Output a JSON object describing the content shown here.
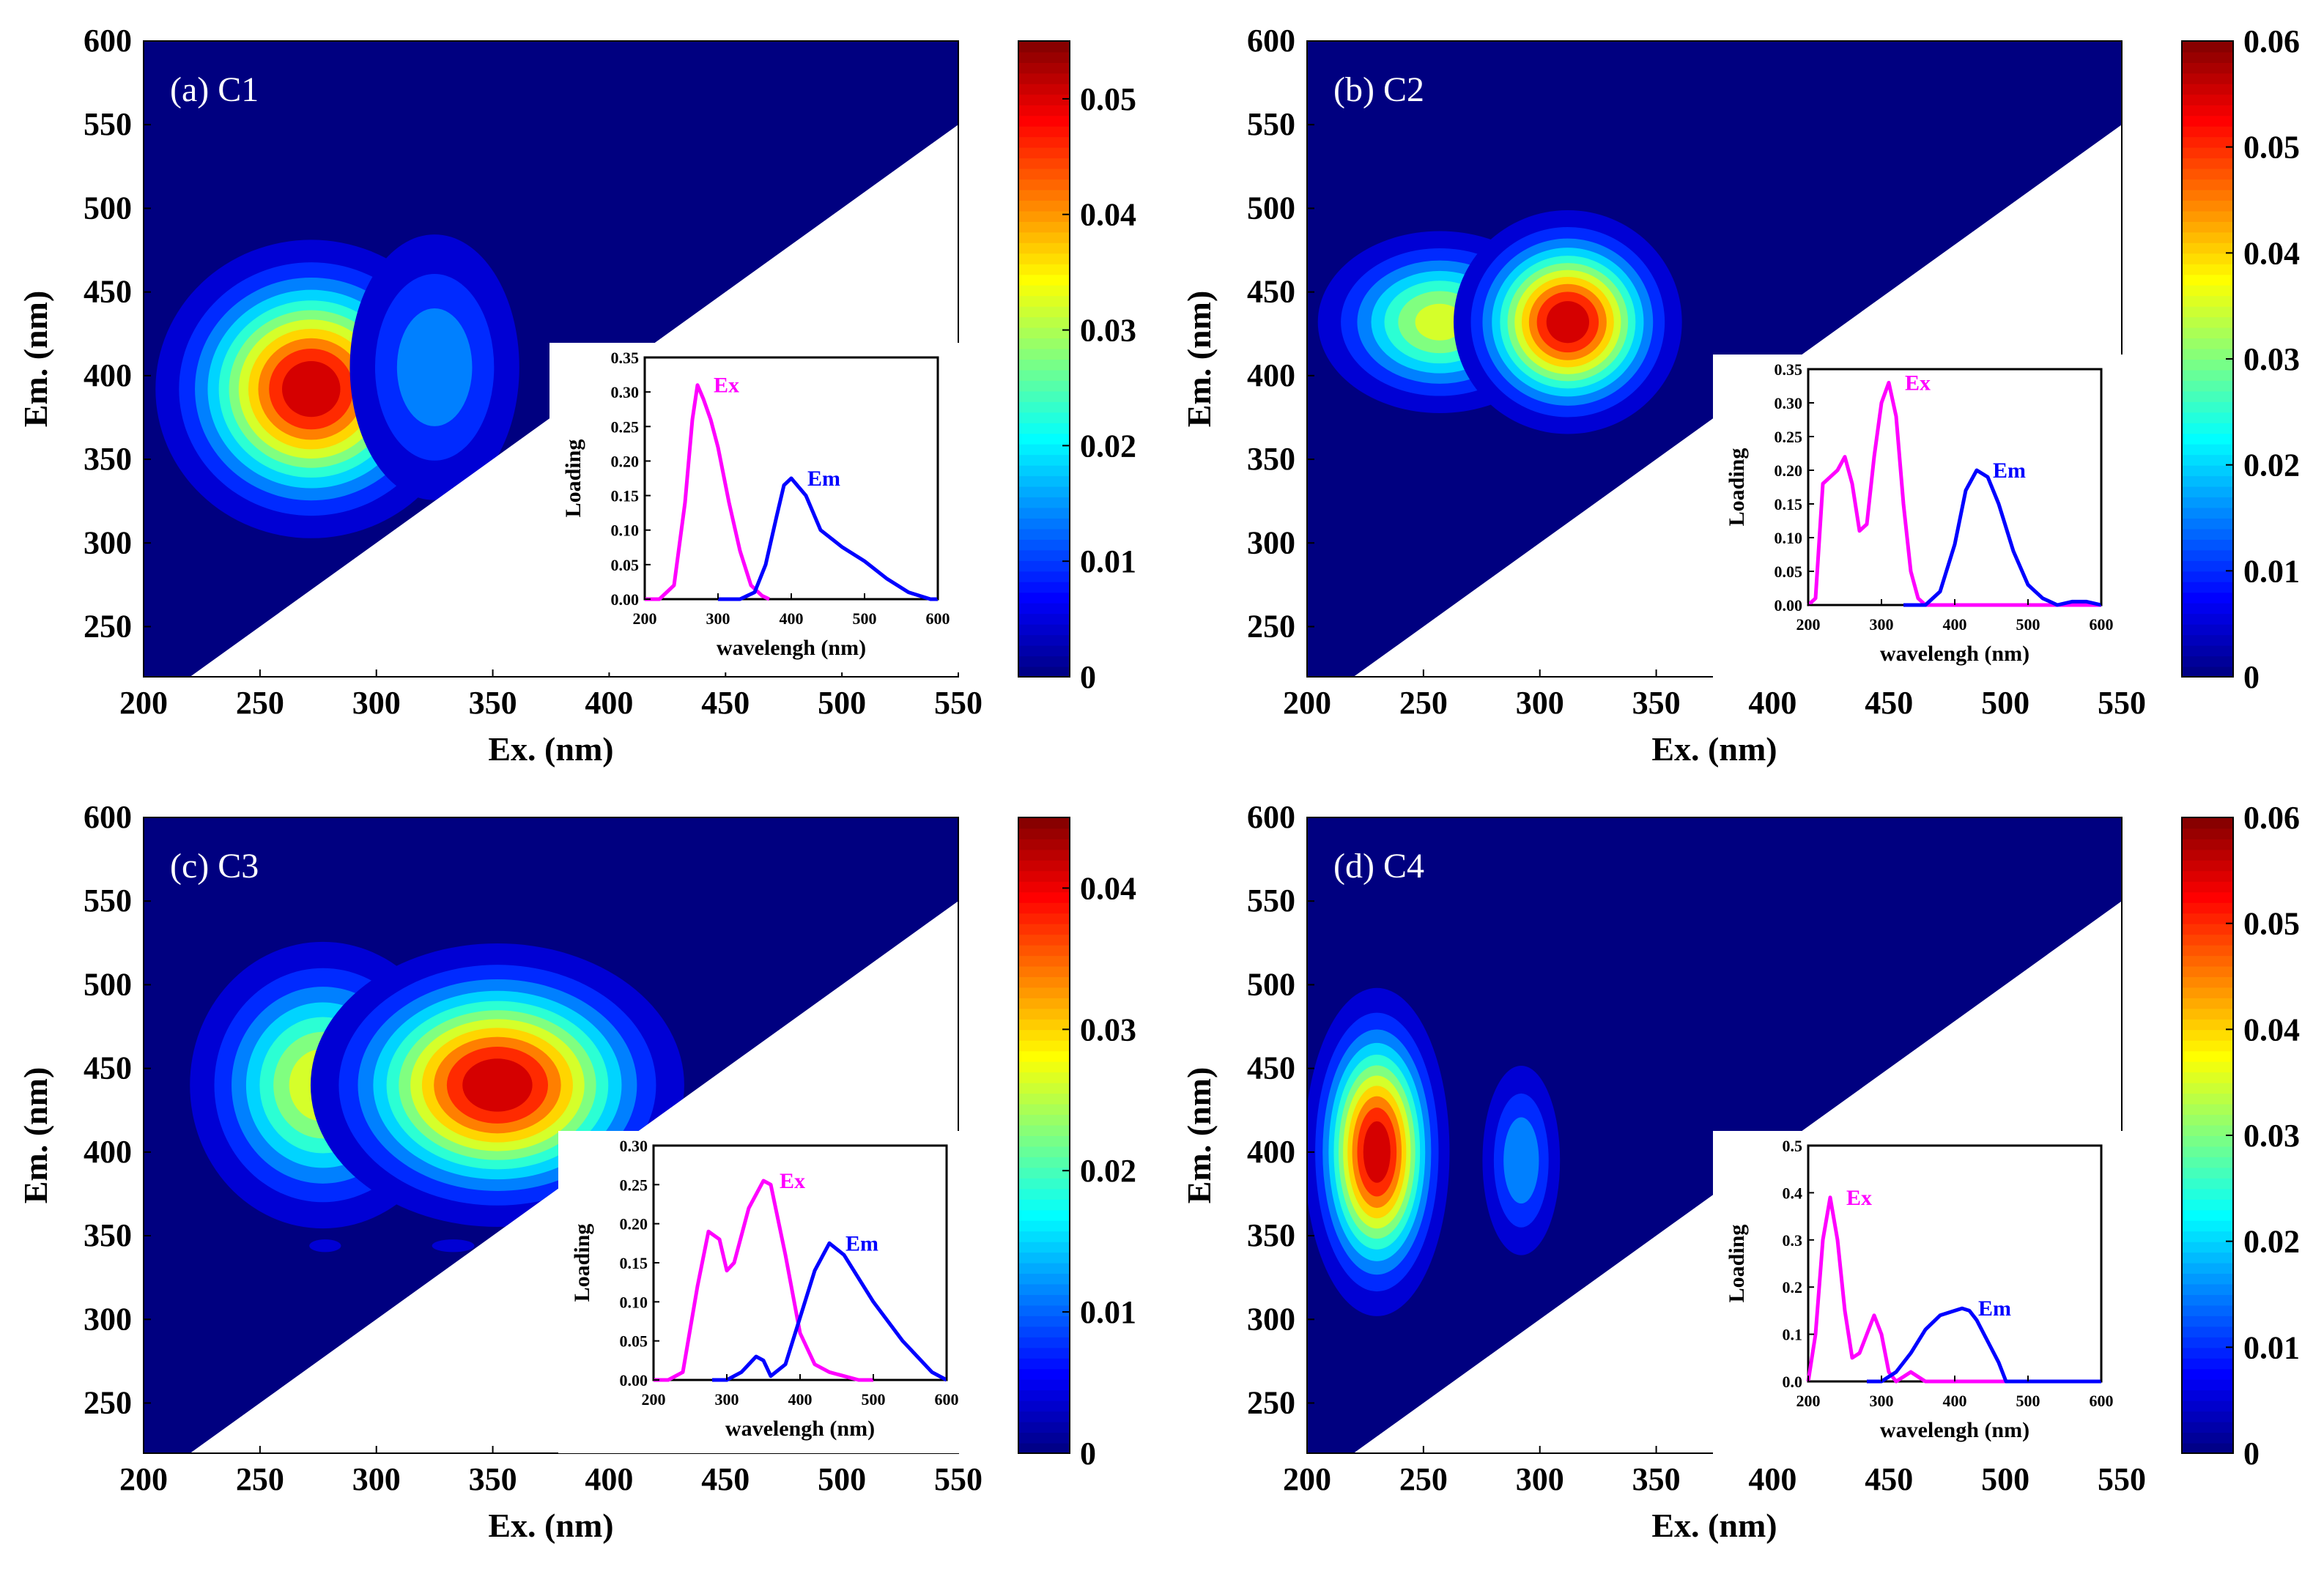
{
  "figure": {
    "axis": {
      "xlabel": "Ex. (nm)",
      "ylabel": "Em. (nm)",
      "xlim": [
        200,
        550
      ],
      "ylim": [
        220,
        600
      ],
      "xticks": [
        "200",
        "250",
        "300",
        "350",
        "400",
        "450",
        "500",
        "550"
      ],
      "yticks": [
        "250",
        "300",
        "350",
        "400",
        "450",
        "500",
        "550",
        "600"
      ]
    },
    "inset_axis": {
      "xlabel": "wavelengh (nm)",
      "ylabel": "Loading",
      "xticks": [
        "200",
        "300",
        "400",
        "500",
        "600"
      ],
      "xlim": [
        200,
        600
      ]
    }
  },
  "chart_data": [
    {
      "type": "heatmap",
      "title": "(a) C1",
      "colorbar": {
        "max": 0.055,
        "ticks": [
          "0",
          "0.01",
          "0.02",
          "0.03",
          "0.04",
          "0.05"
        ]
      },
      "peaks": [
        {
          "ex": 272,
          "em": 392,
          "sx": 30,
          "sy": 40,
          "amp": 0.055
        },
        {
          "ex": 325,
          "em": 405,
          "sx": 22,
          "sy": 48,
          "amp": 0.018
        }
      ],
      "inset": {
        "ylim": [
          0,
          0.35
        ],
        "yticks": [
          "0.00",
          "0.05",
          "0.10",
          "0.15",
          "0.20",
          "0.25",
          "0.30",
          "0.35"
        ],
        "series": [
          {
            "name": "Ex",
            "color": "#ff00ff",
            "x": [
              200,
              220,
              240,
              255,
              265,
              272,
              280,
              290,
              300,
              315,
              330,
              345,
              360,
              370
            ],
            "y": [
              0,
              0,
              0.02,
              0.14,
              0.26,
              0.31,
              0.29,
              0.26,
              0.22,
              0.14,
              0.07,
              0.02,
              0.005,
              0
            ]
          },
          {
            "name": "Em",
            "color": "#0000ff",
            "x": [
              300,
              330,
              350,
              365,
              380,
              390,
              400,
              420,
              440,
              470,
              500,
              530,
              560,
              590,
              600
            ],
            "y": [
              0,
              0,
              0.01,
              0.05,
              0.12,
              0.165,
              0.175,
              0.15,
              0.1,
              0.075,
              0.055,
              0.03,
              0.01,
              0,
              0
            ]
          }
        ]
      }
    },
    {
      "type": "heatmap",
      "title": "(b) C2",
      "colorbar": {
        "max": 0.06,
        "ticks": [
          "0",
          "0.01",
          "0.02",
          "0.03",
          "0.04",
          "0.05",
          "0.06"
        ]
      },
      "peaks": [
        {
          "ex": 257,
          "em": 432,
          "sx": 26,
          "sy": 27,
          "amp": 0.038
        },
        {
          "ex": 312,
          "em": 432,
          "sx": 22,
          "sy": 30,
          "amp": 0.06
        }
      ],
      "inset": {
        "ylim": [
          0,
          0.35
        ],
        "yticks": [
          "0.00",
          "0.05",
          "0.10",
          "0.15",
          "0.20",
          "0.25",
          "0.30",
          "0.35"
        ],
        "series": [
          {
            "name": "Ex",
            "color": "#ff00ff",
            "x": [
              200,
              210,
              220,
              230,
              240,
              250,
              260,
              270,
              280,
              290,
              300,
              310,
              320,
              330,
              340,
              350,
              360,
              370,
              600
            ],
            "y": [
              0,
              0.01,
              0.18,
              0.19,
              0.2,
              0.22,
              0.18,
              0.11,
              0.12,
              0.22,
              0.3,
              0.33,
              0.28,
              0.15,
              0.05,
              0.01,
              0,
              0,
              0
            ]
          },
          {
            "name": "Em",
            "color": "#0000ff",
            "x": [
              330,
              360,
              380,
              400,
              415,
              430,
              445,
              460,
              480,
              500,
              520,
              540,
              560,
              580,
              600
            ],
            "y": [
              0,
              0,
              0.02,
              0.09,
              0.17,
              0.2,
              0.19,
              0.15,
              0.08,
              0.03,
              0.01,
              0,
              0.005,
              0.005,
              0
            ]
          }
        ]
      }
    },
    {
      "type": "heatmap",
      "title": "(c) C3",
      "colorbar": {
        "max": 0.045,
        "ticks": [
          "0",
          "0.01",
          "0.02",
          "0.03",
          "0.04"
        ]
      },
      "peaks": [
        {
          "ex": 277,
          "em": 440,
          "sx": 28,
          "sy": 42,
          "amp": 0.03
        },
        {
          "ex": 352,
          "em": 440,
          "sx": 36,
          "sy": 38,
          "amp": 0.045
        },
        {
          "ex": 278,
          "em": 344,
          "sx": 9,
          "sy": 5,
          "amp": 0.005
        },
        {
          "ex": 333,
          "em": 344,
          "sx": 12,
          "sy": 5,
          "amp": 0.005
        }
      ],
      "inset": {
        "ylim": [
          0,
          0.3
        ],
        "yticks": [
          "0.00",
          "0.05",
          "0.10",
          "0.15",
          "0.20",
          "0.25",
          "0.30"
        ],
        "series": [
          {
            "name": "Ex",
            "color": "#ff00ff",
            "x": [
              200,
              220,
              240,
              260,
              275,
              290,
              300,
              310,
              330,
              350,
              360,
              380,
              400,
              420,
              440,
              460,
              480,
              500
            ],
            "y": [
              0,
              0,
              0.01,
              0.12,
              0.19,
              0.18,
              0.14,
              0.15,
              0.22,
              0.255,
              0.25,
              0.16,
              0.06,
              0.02,
              0.01,
              0.005,
              0,
              0
            ]
          },
          {
            "name": "Em",
            "color": "#0000ff",
            "x": [
              280,
              300,
              320,
              340,
              350,
              360,
              380,
              400,
              420,
              440,
              460,
              480,
              500,
              520,
              540,
              560,
              580,
              600
            ],
            "y": [
              0,
              0,
              0.01,
              0.03,
              0.025,
              0.005,
              0.02,
              0.08,
              0.14,
              0.175,
              0.16,
              0.13,
              0.1,
              0.075,
              0.05,
              0.03,
              0.01,
              0
            ]
          }
        ]
      }
    },
    {
      "type": "heatmap",
      "title": "(d) C4",
      "colorbar": {
        "max": 0.06,
        "ticks": [
          "0",
          "0.01",
          "0.02",
          "0.03",
          "0.04",
          "0.05",
          "0.06"
        ]
      },
      "peaks": [
        {
          "ex": 230,
          "em": 400,
          "sx": 14,
          "sy": 44,
          "amp": 0.06
        },
        {
          "ex": 292,
          "em": 395,
          "sx": 10,
          "sy": 34,
          "amp": 0.02
        }
      ],
      "inset": {
        "ylim": [
          0,
          0.5
        ],
        "yticks": [
          "0.0",
          "0.1",
          "0.2",
          "0.3",
          "0.4",
          "0.5"
        ],
        "series": [
          {
            "name": "Ex",
            "color": "#ff00ff",
            "x": [
              200,
              210,
              220,
              230,
              240,
              250,
              260,
              270,
              280,
              290,
              300,
              310,
              320,
              330,
              340,
              350,
              360,
              600
            ],
            "y": [
              0,
              0.1,
              0.3,
              0.39,
              0.3,
              0.15,
              0.05,
              0.06,
              0.1,
              0.14,
              0.1,
              0.02,
              0,
              0.01,
              0.02,
              0.01,
              0,
              0
            ]
          },
          {
            "name": "Em",
            "color": "#0000ff",
            "x": [
              280,
              300,
              320,
              340,
              360,
              380,
              400,
              410,
              420,
              430,
              440,
              450,
              460,
              470,
              480,
              600
            ],
            "y": [
              0,
              0,
              0.02,
              0.06,
              0.11,
              0.14,
              0.15,
              0.155,
              0.15,
              0.13,
              0.1,
              0.07,
              0.04,
              0,
              0,
              0
            ]
          }
        ]
      }
    }
  ]
}
